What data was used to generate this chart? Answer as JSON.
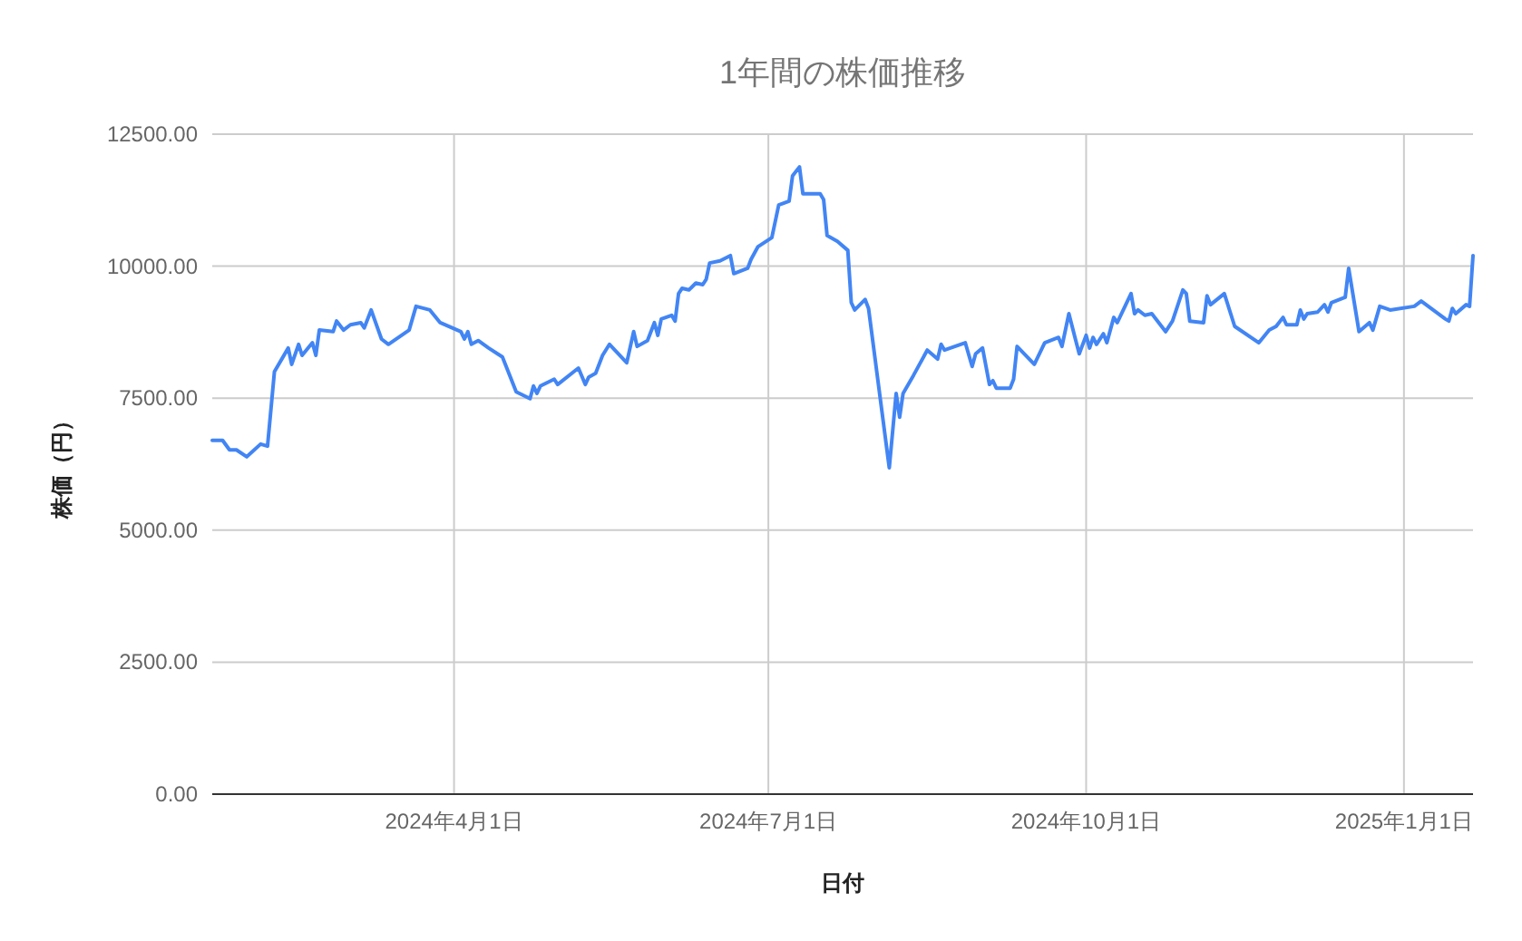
{
  "chart_data": {
    "type": "line",
    "title": "1年間の株価推移",
    "xlabel": "日付",
    "ylabel": "株価（円）",
    "color": "#4285f4",
    "grid": true,
    "xlim": [
      "2024-01-22",
      "2025-01-21"
    ],
    "xticks": [
      {
        "value": "2024-04-01",
        "label": "2024年4月1日"
      },
      {
        "value": "2024-07-01",
        "label": "2024年7月1日"
      },
      {
        "value": "2024-10-01",
        "label": "2024年10月1日"
      },
      {
        "value": "2025-01-01",
        "label": "2025年1月1日"
      }
    ],
    "ylim": [
      0,
      12500
    ],
    "yticks": [
      {
        "value": 0,
        "label": "0.00"
      },
      {
        "value": 2500,
        "label": "2500.00"
      },
      {
        "value": 5000,
        "label": "5000.00"
      },
      {
        "value": 7500,
        "label": "7500.00"
      },
      {
        "value": 10000,
        "label": "10000.00"
      },
      {
        "value": 12500,
        "label": "12500.00"
      }
    ],
    "x": [
      "2024-01-22",
      "2024-01-25",
      "2024-01-27",
      "2024-01-29",
      "2024-02-01",
      "2024-02-05",
      "2024-02-07",
      "2024-02-09",
      "2024-02-13",
      "2024-02-14",
      "2024-02-16",
      "2024-02-17",
      "2024-02-20",
      "2024-02-21",
      "2024-02-22",
      "2024-02-26",
      "2024-02-27",
      "2024-02-29",
      "2024-03-02",
      "2024-03-05",
      "2024-03-06",
      "2024-03-08",
      "2024-03-11",
      "2024-03-13",
      "2024-03-19",
      "2024-03-21",
      "2024-03-25",
      "2024-03-28",
      "2024-04-03",
      "2024-04-04",
      "2024-04-05",
      "2024-04-06",
      "2024-04-08",
      "2024-04-11",
      "2024-04-15",
      "2024-04-19",
      "2024-04-23",
      "2024-04-24",
      "2024-04-25",
      "2024-04-26",
      "2024-04-30",
      "2024-05-01",
      "2024-05-07",
      "2024-05-09",
      "2024-05-10",
      "2024-05-12",
      "2024-05-14",
      "2024-05-16",
      "2024-05-21",
      "2024-05-23",
      "2024-05-24",
      "2024-05-27",
      "2024-05-29",
      "2024-05-30",
      "2024-05-31",
      "2024-06-03",
      "2024-06-04",
      "2024-06-05",
      "2024-06-06",
      "2024-06-08",
      "2024-06-10",
      "2024-06-12",
      "2024-06-13",
      "2024-06-14",
      "2024-06-17",
      "2024-06-20",
      "2024-06-21",
      "2024-06-25",
      "2024-06-26",
      "2024-06-28",
      "2024-07-02",
      "2024-07-04",
      "2024-07-07",
      "2024-07-08",
      "2024-07-10",
      "2024-07-11",
      "2024-07-16",
      "2024-07-17",
      "2024-07-18",
      "2024-07-21",
      "2024-07-24",
      "2024-07-25",
      "2024-07-26",
      "2024-07-29",
      "2024-07-30",
      "2024-08-05",
      "2024-08-07",
      "2024-08-08",
      "2024-08-09",
      "2024-08-12",
      "2024-08-16",
      "2024-08-19",
      "2024-08-20",
      "2024-08-21",
      "2024-08-27",
      "2024-08-29",
      "2024-08-30",
      "2024-09-01",
      "2024-09-03",
      "2024-09-04",
      "2024-09-05",
      "2024-09-09",
      "2024-09-10",
      "2024-09-11",
      "2024-09-16",
      "2024-09-19",
      "2024-09-23",
      "2024-09-24",
      "2024-09-26",
      "2024-09-28",
      "2024-09-29",
      "2024-10-01",
      "2024-10-02",
      "2024-10-03",
      "2024-10-04",
      "2024-10-06",
      "2024-10-07",
      "2024-10-09",
      "2024-10-10",
      "2024-10-14",
      "2024-10-15",
      "2024-10-16",
      "2024-10-18",
      "2024-10-20",
      "2024-10-24",
      "2024-10-26",
      "2024-10-29",
      "2024-10-30",
      "2024-10-31",
      "2024-11-04",
      "2024-11-05",
      "2024-11-06",
      "2024-11-10",
      "2024-11-13",
      "2024-11-20",
      "2024-11-23",
      "2024-11-25",
      "2024-11-27",
      "2024-11-28",
      "2024-12-01",
      "2024-12-02",
      "2024-12-03",
      "2024-12-04",
      "2024-12-07",
      "2024-12-09",
      "2024-12-10",
      "2024-12-11",
      "2024-12-15",
      "2024-12-16",
      "2024-12-19",
      "2024-12-22",
      "2024-12-23",
      "2024-12-25",
      "2024-12-28",
      "2025-01-04",
      "2025-01-06",
      "2025-01-13",
      "2025-01-14",
      "2025-01-15",
      "2025-01-16",
      "2025-01-19",
      "2025-01-20",
      "2025-01-21"
    ],
    "values": [
      6700,
      6700,
      6520,
      6520,
      6390,
      6630,
      6590,
      8000,
      8450,
      8140,
      8520,
      8310,
      8550,
      8310,
      8790,
      8760,
      8960,
      8790,
      8890,
      8930,
      8830,
      9170,
      8620,
      8520,
      8790,
      9240,
      9170,
      8930,
      8760,
      8620,
      8760,
      8520,
      8590,
      8450,
      8280,
      7620,
      7490,
      7730,
      7590,
      7730,
      7860,
      7760,
      8070,
      7760,
      7900,
      7970,
      8310,
      8520,
      8170,
      8760,
      8480,
      8590,
      8930,
      8690,
      9000,
      9070,
      8960,
      9480,
      9580,
      9550,
      9680,
      9650,
      9750,
      10060,
      10100,
      10200,
      9860,
      9960,
      10130,
      10370,
      10540,
      11160,
      11230,
      11710,
      11880,
      11370,
      11370,
      11260,
      10580,
      10470,
      10300,
      9310,
      9170,
      9370,
      9200,
      6180,
      7590,
      7140,
      7590,
      7930,
      8410,
      8240,
      8520,
      8410,
      8550,
      8100,
      8340,
      8450,
      7760,
      7830,
      7690,
      7690,
      7860,
      8480,
      8140,
      8550,
      8650,
      8480,
      9100,
      8590,
      8340,
      8690,
      8450,
      8650,
      8520,
      8720,
      8550,
      9030,
      8930,
      9480,
      9100,
      9170,
      9070,
      9100,
      8760,
      8960,
      9550,
      9480,
      8960,
      8930,
      9440,
      9270,
      9480,
      8860,
      8550,
      8790,
      8860,
      9030,
      8890,
      8890,
      9170,
      9000,
      9100,
      9130,
      9270,
      9130,
      9310,
      9410,
      9960,
      8760,
      8930,
      8790,
      9240,
      9170,
      9240,
      9340,
      9000,
      8960,
      9200,
      9100,
      9270,
      9240,
      10200
    ]
  }
}
